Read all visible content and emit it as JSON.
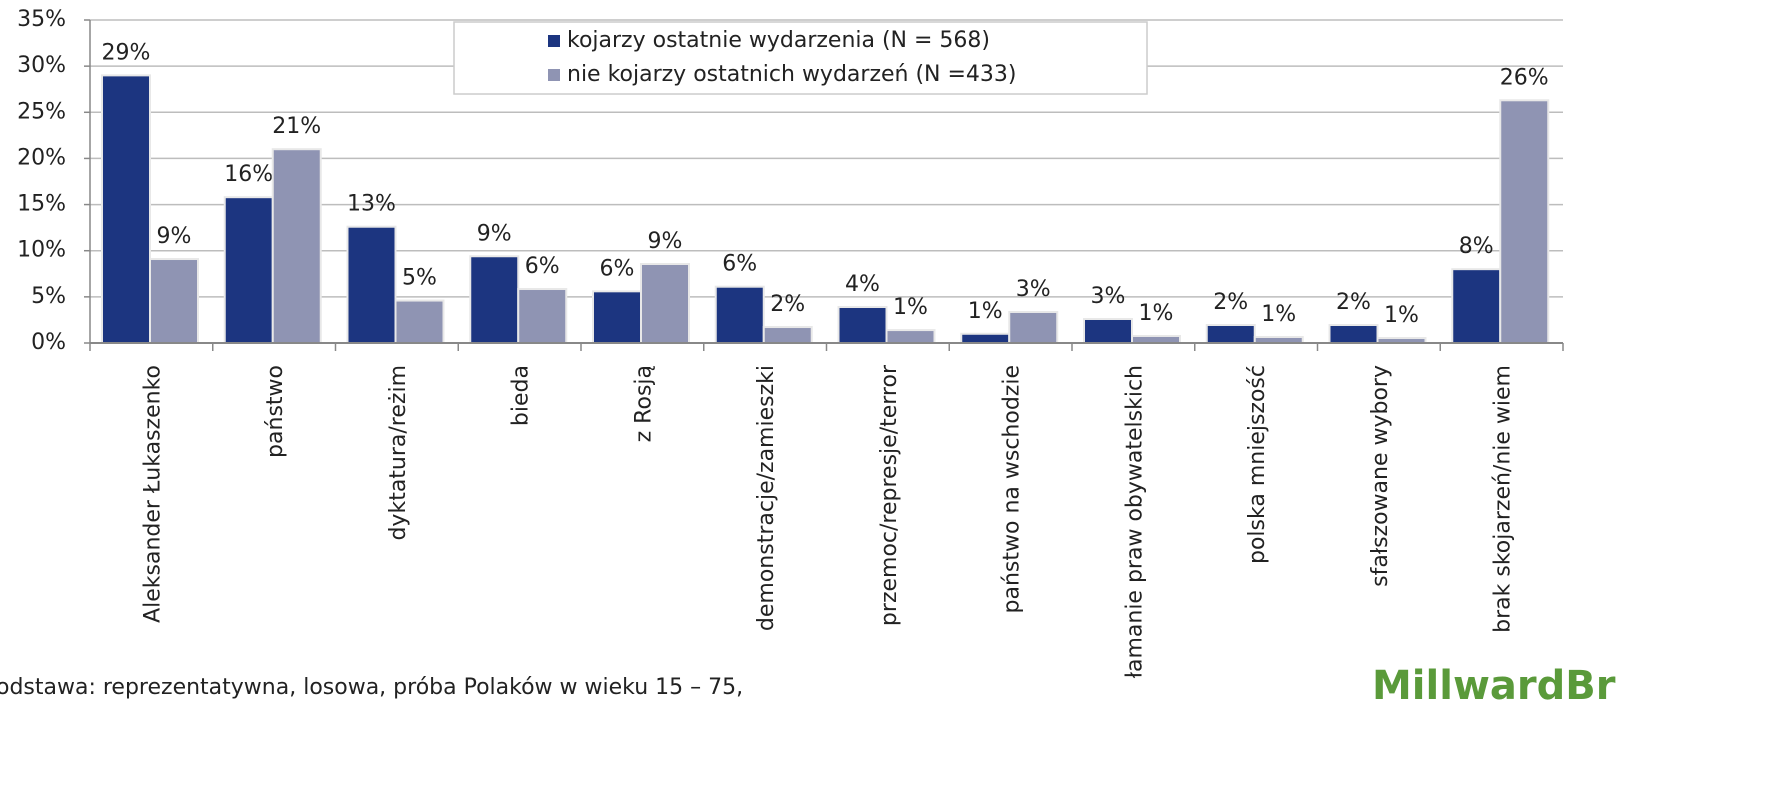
{
  "chart_data": {
    "type": "bar",
    "categories": [
      "Aleksander Łukaszenko",
      "państwo",
      "dyktatura/reżim",
      "bieda",
      "z Rosją",
      "demonstracje/zamieszki",
      "przemoc/represje/terror",
      "państwo na wschodzie",
      "łamanie praw obywatelskich",
      "polska mniejszość",
      "sfałszowane wybory",
      "brak skojarzeń/nie wiem"
    ],
    "series": [
      {
        "name": "kojarzy ostatnie wydarzenia (N = 568)",
        "color": "#1c3580",
        "values": [
          29.0,
          15.8,
          12.6,
          9.4,
          5.6,
          6.1,
          3.9,
          1.0,
          2.6,
          1.95,
          1.95,
          8.0
        ],
        "value_labels": [
          "29%",
          "16%",
          "13%",
          "9%",
          "6%",
          "6%",
          "4%",
          "1%",
          "3%",
          "2%",
          "2%",
          "8%"
        ]
      },
      {
        "name": "nie kojarzy ostatnich wydarzeń (N =433)",
        "color": "#8f94b3",
        "values": [
          9.1,
          21.0,
          4.6,
          5.85,
          8.56,
          1.73,
          1.4,
          3.36,
          0.76,
          0.65,
          0.54,
          26.3
        ],
        "value_labels": [
          "9%",
          "21%",
          "5%",
          "6%",
          "9%",
          "2%",
          "1%",
          "3%",
          "1%",
          "1%",
          "1%",
          "26%"
        ]
      }
    ],
    "ylim": [
      0,
      35
    ],
    "yticks": [
      {
        "value": 0,
        "label": "0%"
      },
      {
        "value": 5,
        "label": "5%"
      },
      {
        "value": 10,
        "label": "10%"
      },
      {
        "value": 15,
        "label": "15%"
      },
      {
        "value": 20,
        "label": "20%"
      },
      {
        "value": 25,
        "label": "25%"
      },
      {
        "value": 30,
        "label": "30%"
      },
      {
        "value": 35,
        "label": "35%"
      }
    ],
    "grid": true,
    "legend": "top",
    "footnote": "odstawa: reprezentatywna, losowa, próba Polaków w wieku 15 – 75,",
    "logo": "MillwardBr"
  }
}
